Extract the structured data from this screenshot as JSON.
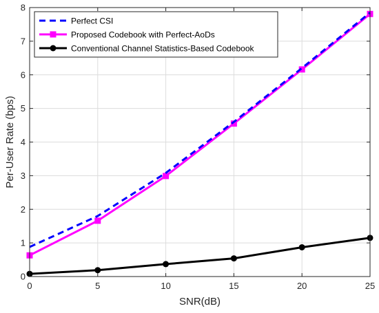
{
  "chart_data": {
    "type": "line",
    "xlabel": "SNR(dB)",
    "ylabel": "Per-User Rate (bps)",
    "xlim": [
      0,
      25
    ],
    "ylim": [
      0,
      8
    ],
    "xticks": [
      0,
      5,
      10,
      15,
      20,
      25
    ],
    "yticks": [
      0,
      1,
      2,
      3,
      4,
      5,
      6,
      7,
      8
    ],
    "grid": true,
    "legend_position": "top-left",
    "series": [
      {
        "name": "Perfect CSI",
        "color": "#0000FF",
        "line_style": "dashed",
        "marker": "none",
        "x": [
          0,
          5,
          10,
          15,
          20,
          25
        ],
        "y": [
          0.88,
          1.8,
          3.08,
          4.6,
          6.2,
          7.85
        ]
      },
      {
        "name": "Proposed Codebook with Perfect-AoDs",
        "color": "#FF00FF",
        "line_style": "solid",
        "marker": "square",
        "x": [
          0,
          5,
          10,
          15,
          20,
          25
        ],
        "y": [
          0.63,
          1.66,
          2.99,
          4.55,
          6.16,
          7.81
        ]
      },
      {
        "name": "Conventional Channel Statistics-Based Codebook",
        "color": "#000000",
        "line_style": "solid",
        "marker": "circle",
        "x": [
          0,
          5,
          10,
          15,
          20,
          25
        ],
        "y": [
          0.08,
          0.19,
          0.37,
          0.54,
          0.87,
          1.15
        ]
      }
    ]
  }
}
